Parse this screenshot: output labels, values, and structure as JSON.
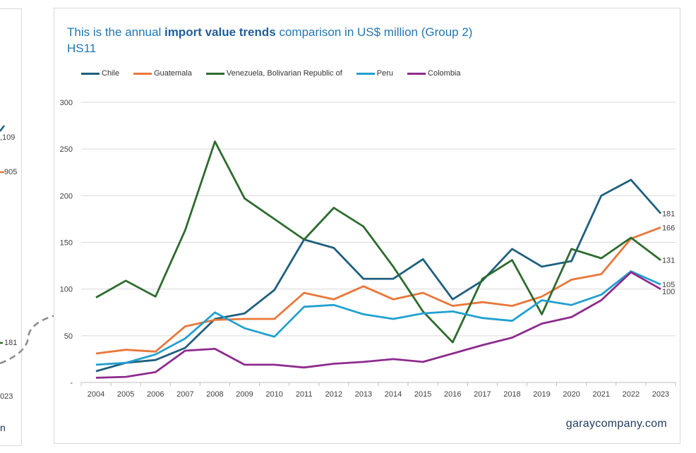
{
  "background": {
    "labels": [
      ",109",
      "905",
      "181",
      "023",
      "n"
    ]
  },
  "title": {
    "prefix": "This is the annual ",
    "bold": "import value trends",
    "suffix": " comparison in US$ million (Group 2)",
    "line2": "HS11"
  },
  "footer": "garaycompany.com",
  "chart_data": {
    "type": "line",
    "x": [
      "2004",
      "2005",
      "2006",
      "2007",
      "2008",
      "2009",
      "2010",
      "2011",
      "2012",
      "2013",
      "2014",
      "2015",
      "2016",
      "2017",
      "2018",
      "2019",
      "2020",
      "2021",
      "2022",
      "2023"
    ],
    "ylim": [
      0,
      300
    ],
    "yticks": [
      "-",
      "50",
      "100",
      "150",
      "200",
      "250",
      "300"
    ],
    "ytick_values": [
      0,
      50,
      100,
      150,
      200,
      250,
      300
    ],
    "grid": true,
    "legend_position": "top-left",
    "series": [
      {
        "name": "Chile",
        "color": "#1f5f7f",
        "end_label": "181",
        "values": [
          12,
          21,
          24,
          37,
          68,
          74,
          99,
          153,
          144,
          111,
          111,
          132,
          89,
          109,
          143,
          124,
          130,
          200,
          217,
          181
        ]
      },
      {
        "name": "Guatemala",
        "color": "#e8773a",
        "end_label": "166",
        "values": [
          31,
          35,
          33,
          60,
          67,
          68,
          68,
          96,
          89,
          103,
          89,
          96,
          82,
          86,
          82,
          92,
          110,
          116,
          154,
          166
        ]
      },
      {
        "name": "Venezuela, Bolivarian Republic of",
        "color": "#2e6b2e",
        "end_label": "131",
        "values": [
          91,
          109,
          92,
          163,
          258,
          197,
          175,
          153,
          187,
          167,
          124,
          76,
          43,
          111,
          131,
          73,
          143,
          133,
          155,
          131
        ]
      },
      {
        "name": "Peru",
        "color": "#22a0d0",
        "end_label": "105",
        "values": [
          19,
          21,
          30,
          47,
          75,
          58,
          49,
          81,
          83,
          73,
          68,
          74,
          76,
          69,
          66,
          88,
          83,
          94,
          119,
          105
        ]
      },
      {
        "name": "Colombia",
        "color": "#8e2b8e",
        "end_label": "100",
        "values": [
          5,
          6,
          11,
          34,
          36,
          19,
          19,
          16,
          20,
          22,
          25,
          22,
          31,
          40,
          48,
          63,
          70,
          88,
          118,
          100
        ]
      }
    ]
  }
}
